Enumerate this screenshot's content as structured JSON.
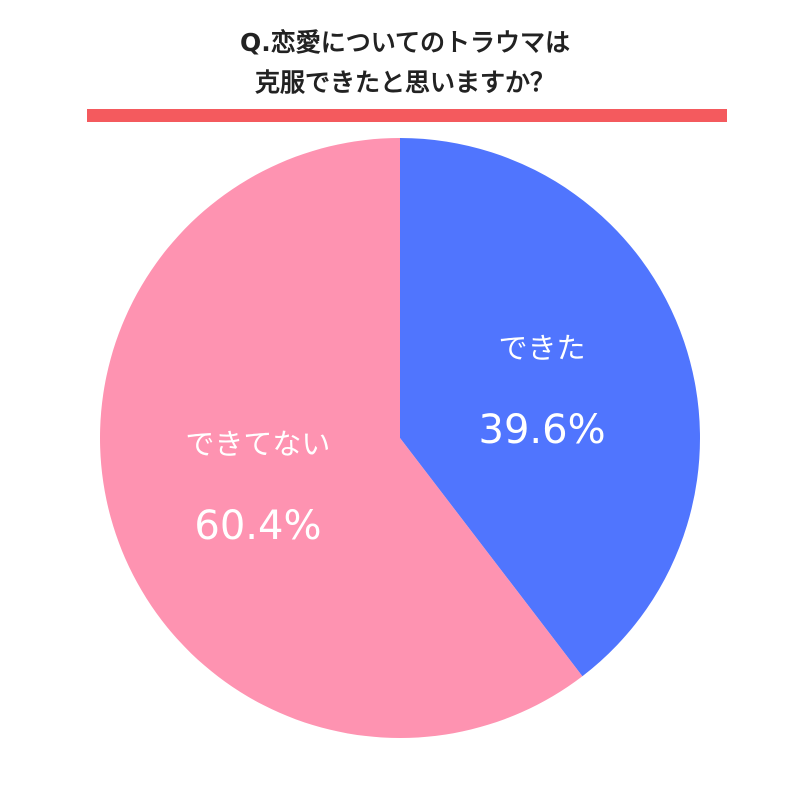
{
  "chart_data": {
    "type": "pie",
    "title": [
      "Q.恋愛についてのトラウマは",
      "克服できたと思いますか？"
    ],
    "categories": [
      "できた",
      "できてない"
    ],
    "values": [
      39.6,
      60.4
    ],
    "value_labels": [
      "39.6%",
      "60.4%"
    ],
    "colors": [
      "#5075fe",
      "#fe93b1"
    ]
  }
}
